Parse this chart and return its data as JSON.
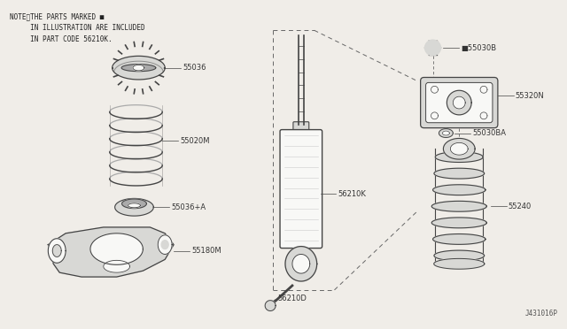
{
  "background_color": "#f0ede8",
  "note_line1": "NOTE、THE PARTS MARKED ■",
  "note_line2": "     IN ILLUSTRATION ARE INCLUDED",
  "note_line3": "     IN PART CODE 56210K.",
  "line_color": "#444444",
  "label_color": "#333333",
  "label_fontsize": 6.0,
  "footer": "J431016P"
}
